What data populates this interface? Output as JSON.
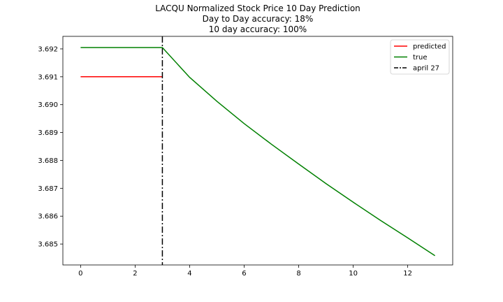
{
  "chart_data": {
    "type": "line",
    "title_lines": [
      "LACQU Normalized Stock Price 10 Day Prediction",
      "Day to Day accuracy: 18%",
      "10 day accuracy: 100%"
    ],
    "xlabel": "",
    "ylabel": "",
    "xlim": [
      -0.65,
      13.65
    ],
    "ylim": [
      3.68425,
      3.69245
    ],
    "xticks": [
      0,
      2,
      4,
      6,
      8,
      10,
      12
    ],
    "yticks": [
      3.685,
      3.686,
      3.687,
      3.688,
      3.689,
      3.69,
      3.691,
      3.692
    ],
    "ytick_labels": [
      "3.685",
      "3.686",
      "3.687",
      "3.688",
      "3.689",
      "3.690",
      "3.691",
      "3.692"
    ],
    "grid": false,
    "legend_position": "top-right",
    "series": [
      {
        "name": "predicted",
        "color": "#ff0000",
        "style": "solid",
        "x": [
          0,
          1,
          2,
          3
        ],
        "y": [
          3.691,
          3.691,
          3.691,
          3.691
        ]
      },
      {
        "name": "true",
        "color": "#008000",
        "style": "solid",
        "x": [
          0,
          1,
          2,
          3,
          4,
          5,
          6,
          7,
          8,
          9,
          10,
          11,
          12,
          13
        ],
        "y": [
          3.69205,
          3.69205,
          3.69205,
          3.69205,
          3.69098,
          3.69012,
          3.68932,
          3.68858,
          3.68787,
          3.68717,
          3.6865,
          3.68585,
          3.68522,
          3.68458
        ]
      }
    ],
    "vline": {
      "name": "april 27",
      "x": 3,
      "color": "#000000",
      "style": "dashdot"
    }
  }
}
